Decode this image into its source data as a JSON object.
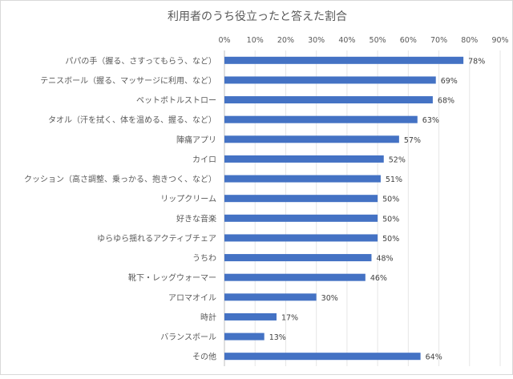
{
  "chart_data": {
    "type": "bar",
    "orientation": "horizontal",
    "title": "利用者のうち役立ったと答えた割合",
    "categories": [
      "パパの手（握る、さすってもらう、など）",
      "テニスボール（握る、マッサージに利用、など）",
      "ペットボトルストロー",
      "タオル（汗を拭く、体を温める、握る、など）",
      "陣痛アプリ",
      "カイロ",
      "クッション（高さ調整、乗っかる、抱きつく、など）",
      "リップクリーム",
      "好きな音楽",
      "ゆらゆら揺れるアクティブチェア",
      "うちわ",
      "靴下・レッグウォーマー",
      "アロマオイル",
      "時計",
      "バランスボール",
      "その他"
    ],
    "values": [
      78,
      69,
      68,
      63,
      57,
      52,
      51,
      50,
      50,
      50,
      48,
      46,
      30,
      17,
      13,
      64
    ],
    "data_labels": [
      "78%",
      "69%",
      "68%",
      "63%",
      "57%",
      "52%",
      "51%",
      "50%",
      "50%",
      "50%",
      "48%",
      "46%",
      "30%",
      "17%",
      "13%",
      "64%"
    ],
    "xlim": [
      0,
      90
    ],
    "x_ticks": [
      "0%",
      "10%",
      "20%",
      "30%",
      "40%",
      "50%",
      "60%",
      "70%",
      "80%",
      "90%"
    ],
    "x_axis_position": "top",
    "grid": true,
    "legend": "none",
    "bar_color": "#4472c4"
  }
}
